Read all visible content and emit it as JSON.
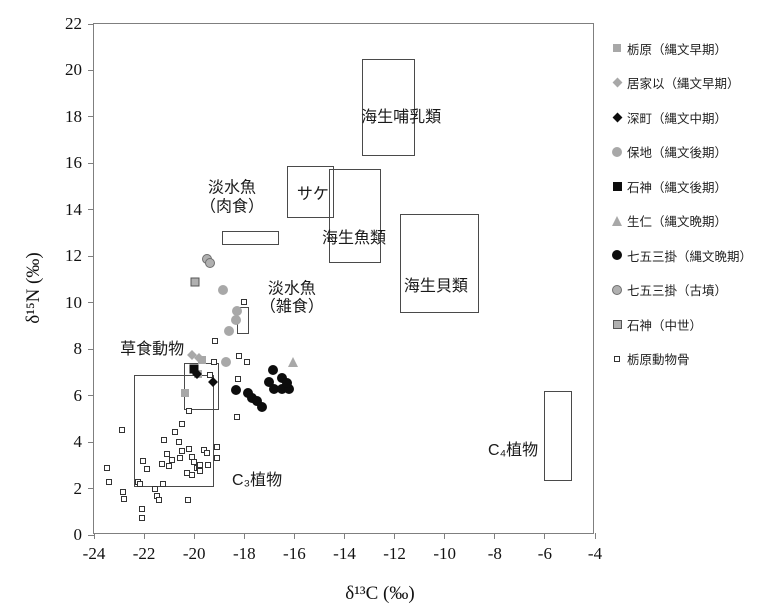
{
  "chart_data": {
    "type": "scatter",
    "xlabel": "δ¹³C (‰)",
    "ylabel": "δ¹⁵N (‰)",
    "xlim": [
      -24,
      -4
    ],
    "ylim": [
      0,
      22
    ],
    "xticks": [
      -24,
      -22,
      -20,
      -18,
      -16,
      -14,
      -12,
      -10,
      -8,
      -6,
      -4
    ],
    "yticks": [
      0,
      2,
      4,
      6,
      8,
      10,
      12,
      14,
      16,
      18,
      20,
      22
    ],
    "grid": false,
    "legend_position": "right",
    "colors": {
      "gray_marker": "#a8a8a8",
      "black_marker": "#0d0d0d",
      "box_border": "#4a4a4a",
      "axis": "#7f7f7f"
    },
    "regions": [
      {
        "label_lines": [
          "海生哺乳類"
        ],
        "x1": -13.3,
        "x2": -11.2,
        "y1": 16.3,
        "y2": 20.5,
        "label_x": -11.74,
        "label_y": 17.95
      },
      {
        "label_lines": [
          "サケ"
        ],
        "x1": -16.3,
        "x2": -14.4,
        "y1": 13.65,
        "y2": 15.9,
        "label_x": -15.26,
        "label_y": 14.64
      },
      {
        "label_lines": [
          "海生魚類"
        ],
        "x1": -14.6,
        "x2": -12.55,
        "y1": 11.7,
        "y2": 15.75,
        "label_x": -13.62,
        "label_y": 12.74
      },
      {
        "label_lines": [
          "淡水魚",
          "（肉食）"
        ],
        "x1": -18.9,
        "x2": -16.6,
        "y1": 12.5,
        "y2": 13.1,
        "label_x": -18.49,
        "label_y": 14.5
      },
      {
        "label_lines": [
          "海生貝類"
        ],
        "x1": -11.8,
        "x2": -8.65,
        "y1": 9.55,
        "y2": 13.8,
        "label_x": -10.35,
        "label_y": 10.68
      },
      {
        "label_lines": [
          "淡水魚",
          "（雑食）"
        ],
        "x1": -18.3,
        "x2": -17.8,
        "y1": 8.65,
        "y2": 9.8,
        "label_x": -16.1,
        "label_y": 10.16
      },
      {
        "label_lines": [
          "草食動物"
        ],
        "x1": -20.4,
        "x2": -19.0,
        "y1": 5.4,
        "y2": 7.4,
        "label_x": -21.68,
        "label_y": 7.96
      },
      {
        "label_lines": [
          "C₃植物"
        ],
        "x1": -22.4,
        "x2": -19.2,
        "y1": 2.05,
        "y2": 6.9,
        "label_x": -17.49,
        "label_y": 2.32
      },
      {
        "label_lines": [
          "C₄植物"
        ],
        "x1": -6.05,
        "x2": -4.9,
        "y1": 2.33,
        "y2": 6.2,
        "label_x": -7.27,
        "label_y": 3.6
      }
    ],
    "series": [
      {
        "name": "栃原（縄文早期）",
        "marker": "square-gray",
        "points": [
          [
            -20.35,
            6.1
          ],
          [
            -19.7,
            7.55
          ],
          [
            -19.85,
            6.95
          ]
        ]
      },
      {
        "name": "居家以（縄文早期）",
        "marker": "diamond-gray",
        "points": [
          [
            -20.1,
            7.75
          ],
          [
            -19.8,
            7.6
          ]
        ]
      },
      {
        "name": "深町（縄文中期）",
        "marker": "diamond-black",
        "points": [
          [
            -19.9,
            6.95
          ],
          [
            -19.25,
            6.6
          ]
        ]
      },
      {
        "name": "保地（縄文後期）",
        "marker": "circle-gray",
        "points": [
          [
            -18.85,
            10.55
          ],
          [
            -18.3,
            9.65
          ],
          [
            -18.35,
            9.25
          ],
          [
            -18.6,
            8.8
          ],
          [
            -18.75,
            7.45
          ]
        ]
      },
      {
        "name": "石神（縄文後期）",
        "marker": "square-black",
        "points": [
          [
            -20.0,
            7.15
          ]
        ]
      },
      {
        "name": "生仁（縄文晩期）",
        "marker": "triangle-gray",
        "points": [
          [
            -16.05,
            7.45
          ]
        ]
      },
      {
        "name": "七五三掛（縄文晩期）",
        "marker": "circle-black",
        "points": [
          [
            -18.35,
            6.25
          ],
          [
            -17.85,
            6.1
          ],
          [
            -17.7,
            5.9
          ],
          [
            -17.5,
            5.75
          ],
          [
            -17.3,
            5.5
          ],
          [
            -16.85,
            7.1
          ],
          [
            -17.0,
            6.6
          ],
          [
            -16.5,
            6.75
          ],
          [
            -16.8,
            6.3
          ],
          [
            -16.5,
            6.3
          ],
          [
            -16.2,
            6.3
          ],
          [
            -16.3,
            6.55
          ]
        ]
      },
      {
        "name": "七五三掛（古墳）",
        "marker": "circle-gray-outlined",
        "points": [
          [
            -19.5,
            11.9
          ],
          [
            -19.35,
            11.7
          ]
        ]
      },
      {
        "name": "石神（中世）",
        "marker": "square-gray-outlined",
        "points": [
          [
            -19.95,
            10.9
          ]
        ]
      },
      {
        "name": "栃原動物骨",
        "marker": "square-open",
        "points": [
          [
            -23.5,
            2.9
          ],
          [
            -23.4,
            2.3
          ],
          [
            -22.9,
            4.5
          ],
          [
            -22.85,
            1.85
          ],
          [
            -22.8,
            1.55
          ],
          [
            -22.25,
            2.3
          ],
          [
            -22.15,
            2.2
          ],
          [
            -22.1,
            1.1
          ],
          [
            -22.1,
            0.75
          ],
          [
            -22.05,
            3.2
          ],
          [
            -21.9,
            2.85
          ],
          [
            -21.55,
            2.0
          ],
          [
            -21.5,
            1.7
          ],
          [
            -21.4,
            1.5
          ],
          [
            -21.3,
            3.05
          ],
          [
            -21.25,
            2.2
          ],
          [
            -21.2,
            4.1
          ],
          [
            -21.1,
            3.5
          ],
          [
            -21.0,
            2.95
          ],
          [
            -20.9,
            3.25
          ],
          [
            -20.75,
            4.45
          ],
          [
            -20.6,
            4.0
          ],
          [
            -20.55,
            3.3
          ],
          [
            -20.5,
            4.8
          ],
          [
            -20.5,
            3.6
          ],
          [
            -20.3,
            2.65
          ],
          [
            -20.25,
            1.5
          ],
          [
            -20.2,
            5.35
          ],
          [
            -20.2,
            3.7
          ],
          [
            -20.1,
            3.35
          ],
          [
            -20.1,
            2.6
          ],
          [
            -20.0,
            3.15
          ],
          [
            -19.9,
            2.9
          ],
          [
            -19.8,
            2.9
          ],
          [
            -19.75,
            3.0
          ],
          [
            -19.75,
            2.75
          ],
          [
            -19.6,
            3.65
          ],
          [
            -19.5,
            3.55
          ],
          [
            -19.45,
            3.0
          ],
          [
            -19.35,
            6.9
          ],
          [
            -19.2,
            7.45
          ],
          [
            -19.15,
            8.35
          ],
          [
            -19.1,
            3.8
          ],
          [
            -19.1,
            3.3
          ],
          [
            -18.3,
            5.1
          ],
          [
            -18.25,
            6.7
          ],
          [
            -18.2,
            7.7
          ],
          [
            -18.0,
            10.05
          ],
          [
            -17.9,
            7.45
          ]
        ]
      }
    ]
  }
}
